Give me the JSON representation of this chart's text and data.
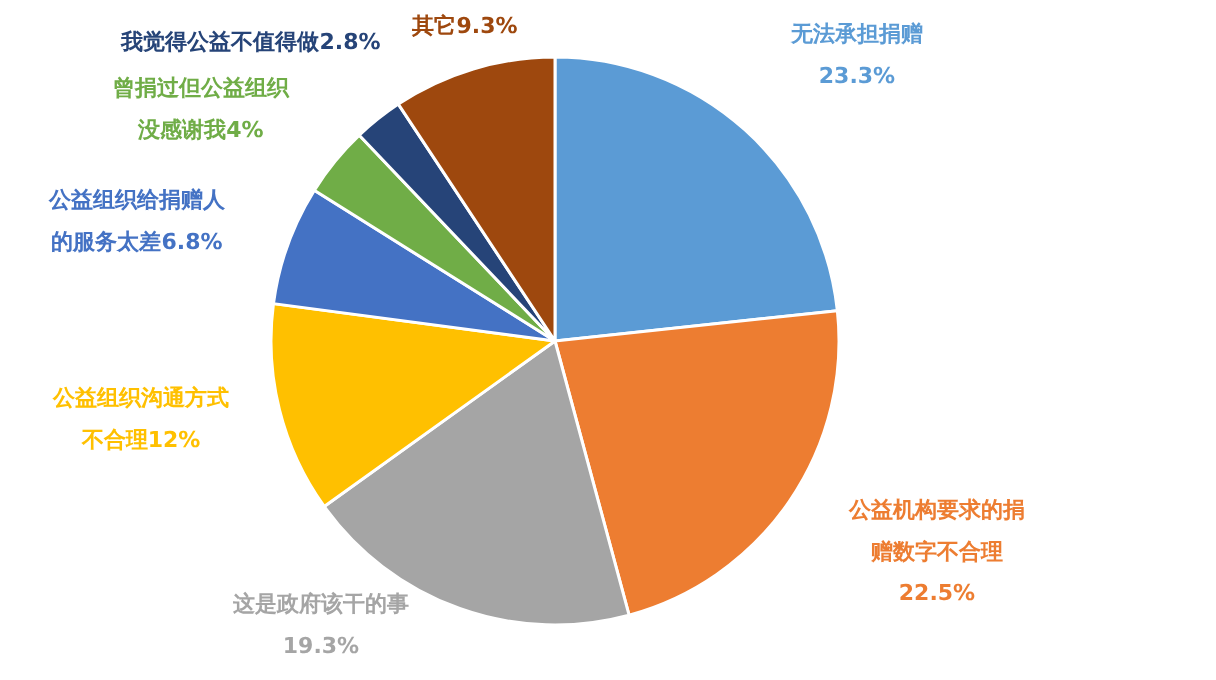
{
  "chart_data": {
    "type": "pie",
    "categories": [
      "无法承担捐赠",
      "公益机构要求的捐赠数字不合理",
      "这是政府该干的事",
      "公益组织沟通方式不合理",
      "公益组织给捐赠人的服务太差",
      "曾捐过但公益组织没感谢我",
      "我觉得公益不值得做",
      "其它"
    ],
    "values": [
      23.3,
      22.5,
      19.3,
      12,
      6.8,
      4,
      2.8,
      9.3
    ],
    "value_labels": [
      "23.3%",
      "22.5%",
      "19.3%",
      "12%",
      "6.8%",
      "4%",
      "2.8%",
      "9.3%"
    ],
    "colors": [
      "#5b9bd5",
      "#ed7d31",
      "#a5a5a5",
      "#ffc000",
      "#4472c4",
      "#70ad47",
      "#264478",
      "#9e480e"
    ]
  }
}
